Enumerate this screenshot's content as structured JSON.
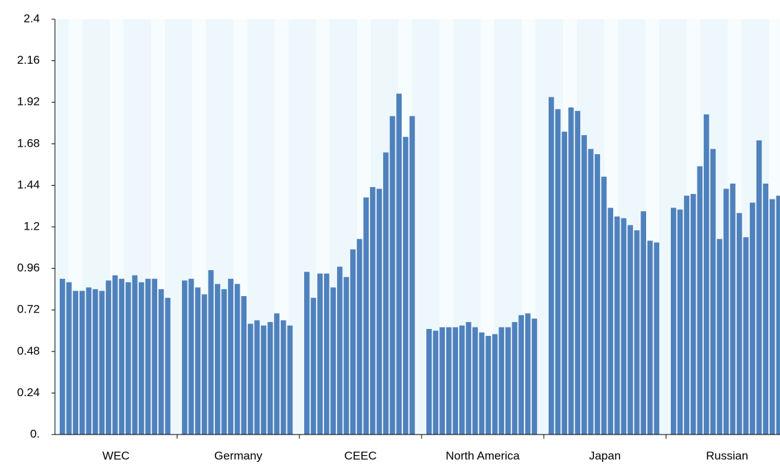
{
  "chart_data": {
    "type": "bar",
    "color": "#4f81bd",
    "ylim": [
      0,
      2.4
    ],
    "yticks": [
      {
        "value": 0,
        "label": "0."
      },
      0.24,
      0.48,
      0.72,
      0.96,
      1.2,
      1.44,
      1.68,
      1.92,
      2.16,
      2.4
    ],
    "groups": [
      {
        "name": "WEC",
        "values": [
          0.9,
          0.88,
          0.83,
          0.83,
          0.85,
          0.84,
          0.83,
          0.89,
          0.92,
          0.9,
          0.88,
          0.92,
          0.88,
          0.9,
          0.9,
          0.84,
          0.79
        ]
      },
      {
        "name": "Germany",
        "values": [
          0.89,
          0.9,
          0.85,
          0.81,
          0.95,
          0.87,
          0.84,
          0.9,
          0.87,
          0.8,
          0.64,
          0.66,
          0.63,
          0.65,
          0.7,
          0.66,
          0.63
        ]
      },
      {
        "name": "CEEC",
        "values": [
          0.94,
          0.79,
          0.93,
          0.93,
          0.85,
          0.97,
          0.91,
          1.07,
          1.13,
          1.37,
          1.43,
          1.42,
          1.63,
          1.84,
          1.97,
          1.72,
          1.84
        ]
      },
      {
        "name": "North America",
        "values": [
          0.61,
          0.6,
          0.62,
          0.62,
          0.62,
          0.63,
          0.65,
          0.62,
          0.59,
          0.57,
          0.58,
          0.62,
          0.62,
          0.65,
          0.69,
          0.7,
          0.67
        ]
      },
      {
        "name": "Japan",
        "values": [
          1.95,
          1.88,
          1.75,
          1.89,
          1.87,
          1.73,
          1.65,
          1.62,
          1.49,
          1.31,
          1.26,
          1.25,
          1.21,
          1.18,
          1.29,
          1.12,
          1.11
        ]
      },
      {
        "name": "Russian",
        "values": [
          1.31,
          1.3,
          1.38,
          1.39,
          1.55,
          1.85,
          1.65,
          1.13,
          1.42,
          1.45,
          1.28,
          1.14,
          1.34,
          1.7,
          1.45,
          1.36,
          1.38
        ]
      }
    ]
  }
}
